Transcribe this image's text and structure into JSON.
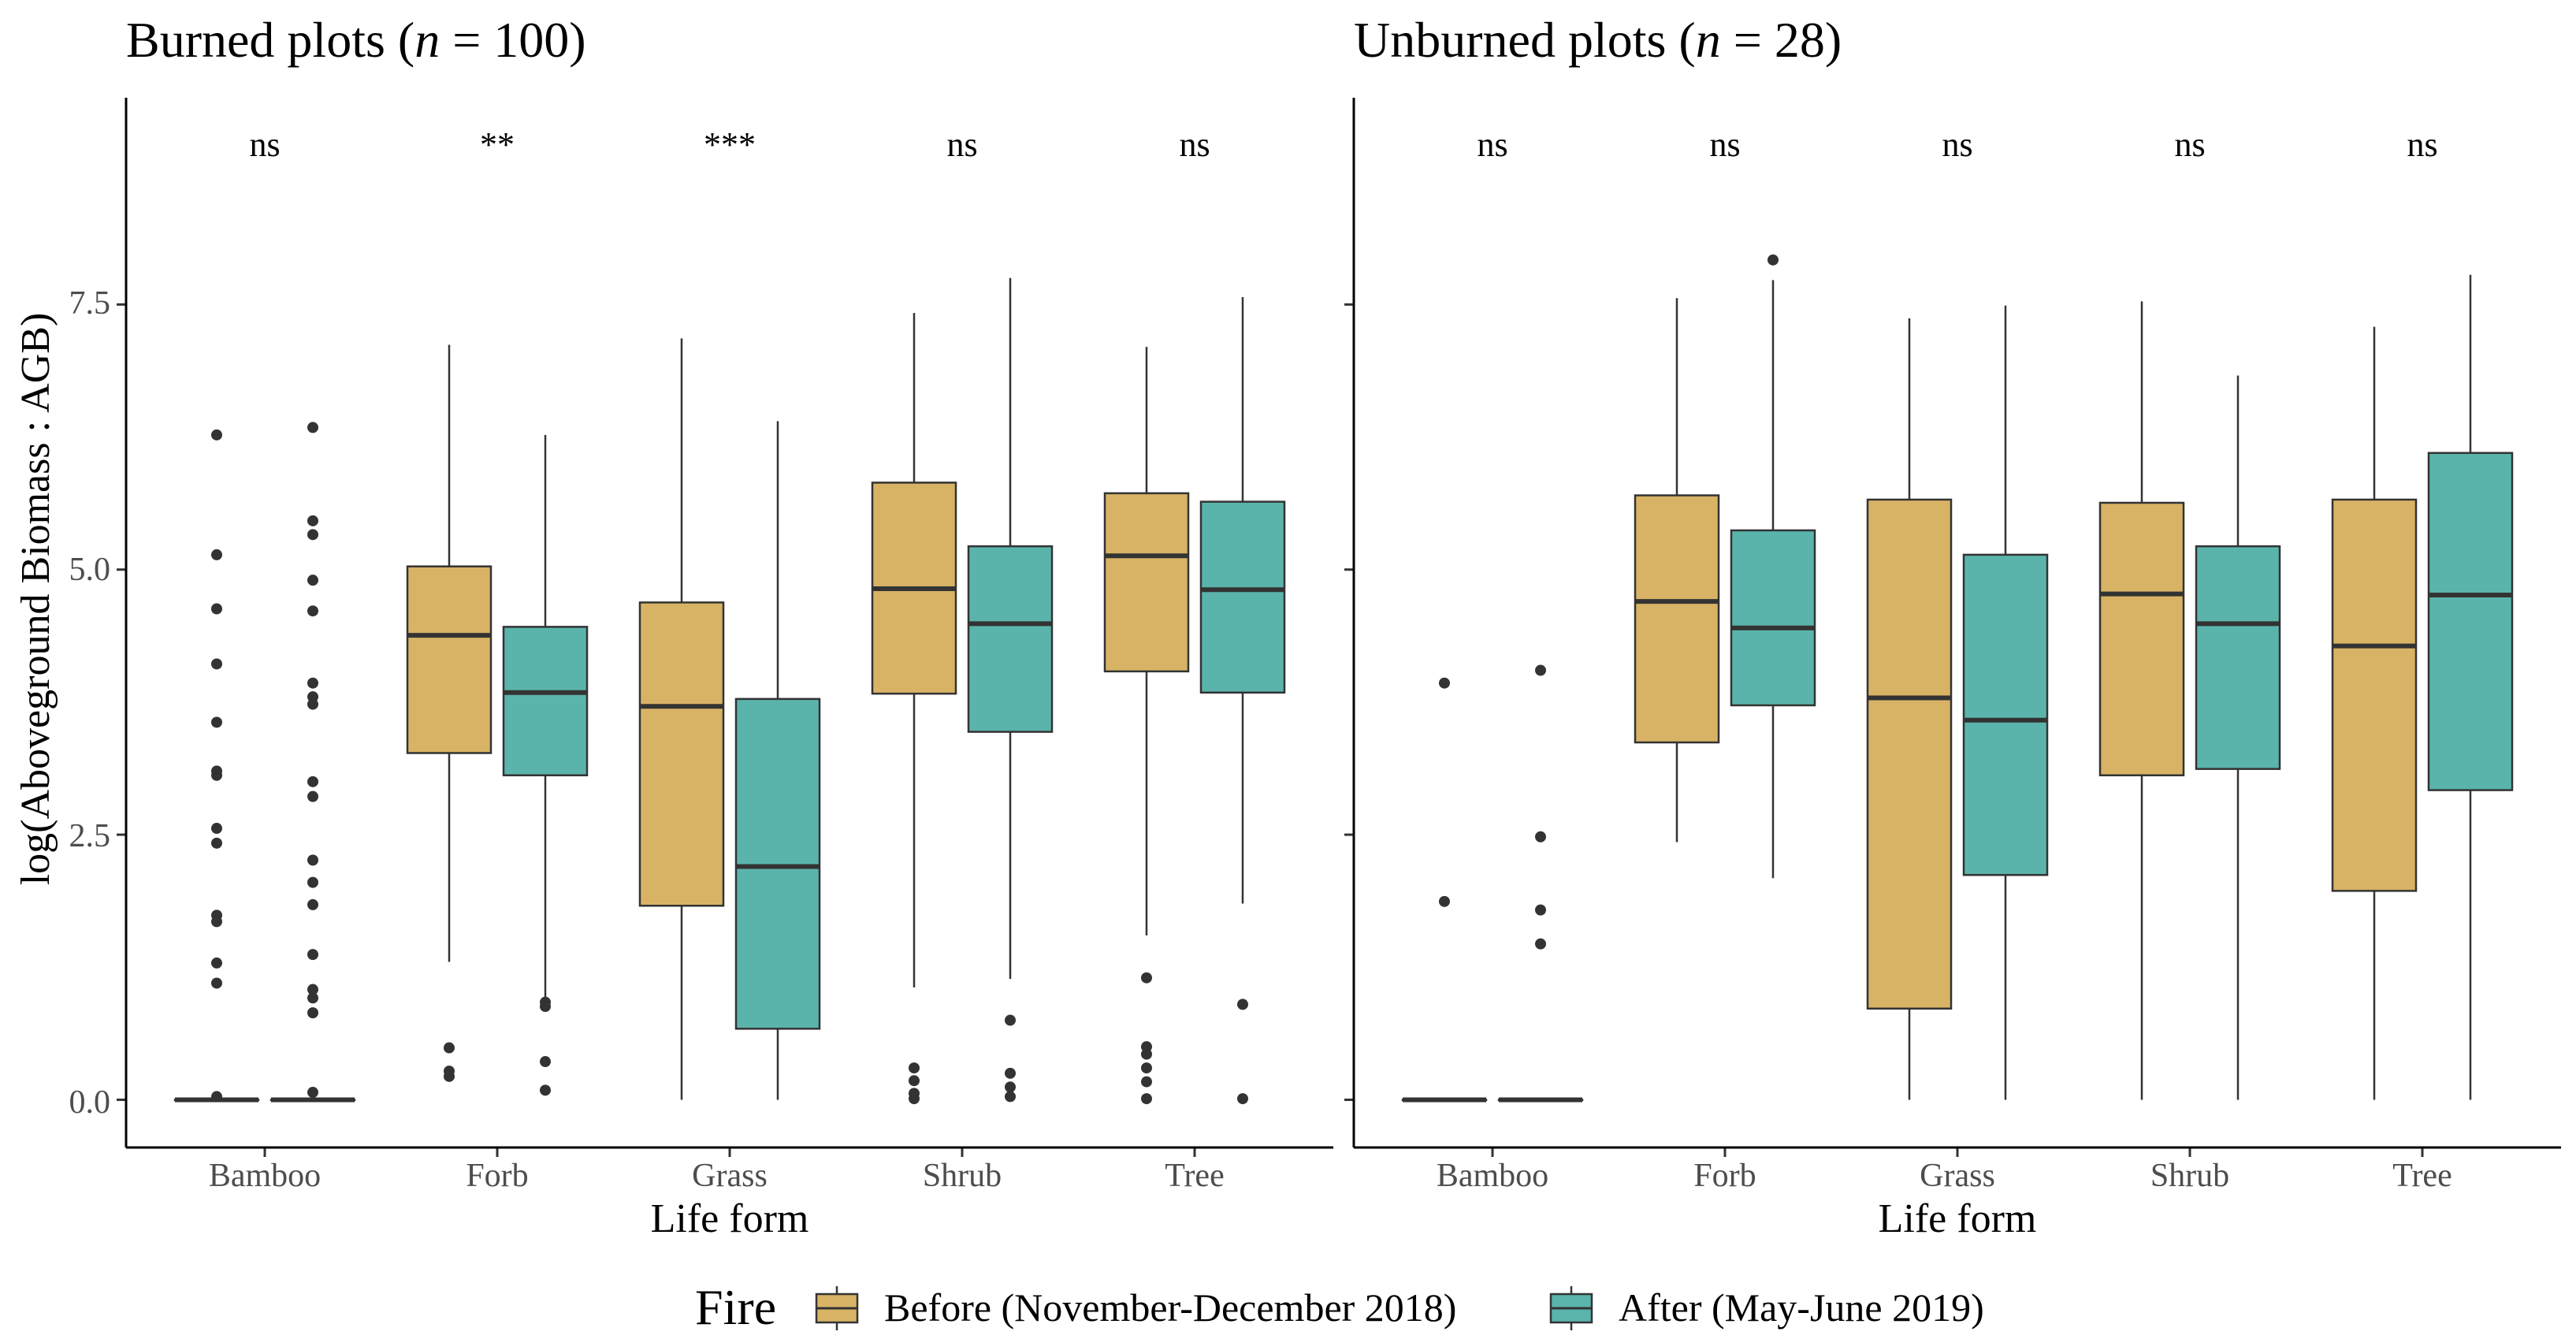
{
  "chart_data": {
    "type": "boxplot",
    "ylabel": "log(Aboveground Biomass : AGB)",
    "xlabel": "Life form",
    "ylim": [
      -0.45,
      9.45
    ],
    "yticks": [
      "0.0",
      "2.5",
      "5.0",
      "7.5"
    ],
    "ytick_values": [
      0,
      2.5,
      5,
      7.5
    ],
    "categories": [
      "Bamboo",
      "Forb",
      "Grass",
      "Shrub",
      "Tree"
    ],
    "legend": {
      "title": "Fire",
      "position": "bottom",
      "entries": [
        {
          "name": "Before (November-December 2018)",
          "color": "#D8B365"
        },
        {
          "name": "After (May-June 2019)",
          "color": "#5AB4AC"
        }
      ]
    },
    "panels": [
      {
        "title_prefix": "Burned plots (",
        "title_n": "n",
        "title_suffix": " = 100)",
        "significance": [
          "ns",
          "**",
          "***",
          "ns",
          "ns"
        ],
        "groups": [
          {
            "category": "Bamboo",
            "before": {
              "q1": 0,
              "median": 0,
              "q3": 0,
              "low": 0,
              "high": 0,
              "outliers": [
                6.27,
                5.14,
                4.63,
                4.11,
                3.56,
                3.1,
                3.06,
                2.56,
                2.42,
                1.74,
                1.68,
                1.29,
                1.1,
                0.03
              ]
            },
            "after": {
              "q1": 0,
              "median": 0,
              "q3": 0,
              "low": 0,
              "high": 0,
              "outliers": [
                6.34,
                5.46,
                5.33,
                4.9,
                4.61,
                3.93,
                3.8,
                3.73,
                3.0,
                2.86,
                2.26,
                2.05,
                1.84,
                1.37,
                1.04,
                0.96,
                0.82,
                0.07
              ]
            }
          },
          {
            "category": "Forb",
            "before": {
              "q1": 3.27,
              "median": 4.38,
              "q3": 5.03,
              "low": 1.3,
              "high": 7.12,
              "outliers": [
                0.49,
                0.27,
                0.22
              ]
            },
            "after": {
              "q1": 3.06,
              "median": 3.84,
              "q3": 4.46,
              "low": 0.96,
              "high": 6.27,
              "outliers": [
                0.92,
                0.88,
                0.36,
                0.09
              ]
            }
          },
          {
            "category": "Grass",
            "before": {
              "q1": 1.83,
              "median": 3.71,
              "q3": 4.69,
              "low": 0,
              "high": 7.18,
              "outliers": []
            },
            "after": {
              "q1": 0.67,
              "median": 2.2,
              "q3": 3.78,
              "low": 0,
              "high": 6.4,
              "outliers": []
            }
          },
          {
            "category": "Shrub",
            "before": {
              "q1": 3.83,
              "median": 4.82,
              "q3": 5.82,
              "low": 1.06,
              "high": 7.42,
              "outliers": [
                0.3,
                0.18,
                0.06,
                0.01
              ]
            },
            "after": {
              "q1": 3.47,
              "median": 4.49,
              "q3": 5.22,
              "low": 1.14,
              "high": 7.75,
              "outliers": [
                0.75,
                0.25,
                0.12,
                0.03
              ]
            }
          },
          {
            "category": "Tree",
            "before": {
              "q1": 4.04,
              "median": 5.13,
              "q3": 5.72,
              "low": 1.55,
              "high": 7.1,
              "outliers": [
                1.15,
                0.5,
                0.43,
                0.3,
                0.17,
                0.01
              ]
            },
            "after": {
              "q1": 3.84,
              "median": 4.81,
              "q3": 5.64,
              "low": 1.85,
              "high": 7.57,
              "outliers": [
                0.9,
                0.01
              ]
            }
          }
        ]
      },
      {
        "title_prefix": "Unburned plots (",
        "title_n": "n",
        "title_suffix": " = 28)",
        "significance": [
          "ns",
          "ns",
          "ns",
          "ns",
          "ns"
        ],
        "groups": [
          {
            "category": "Bamboo",
            "before": {
              "q1": 0,
              "median": 0,
              "q3": 0,
              "low": 0,
              "high": 0,
              "outliers": [
                3.93,
                1.87
              ]
            },
            "after": {
              "q1": 0,
              "median": 0,
              "q3": 0,
              "low": 0,
              "high": 0,
              "outliers": [
                4.05,
                2.48,
                1.79,
                1.47
              ]
            }
          },
          {
            "category": "Forb",
            "before": {
              "q1": 3.37,
              "median": 4.7,
              "q3": 5.7,
              "low": 2.43,
              "high": 7.56,
              "outliers": []
            },
            "after": {
              "q1": 3.72,
              "median": 4.45,
              "q3": 5.37,
              "low": 2.09,
              "high": 7.73,
              "outliers": [
                7.92
              ]
            }
          },
          {
            "category": "Grass",
            "before": {
              "q1": 0.86,
              "median": 3.79,
              "q3": 5.66,
              "low": 0,
              "high": 7.37,
              "outliers": []
            },
            "after": {
              "q1": 2.12,
              "median": 3.58,
              "q3": 5.14,
              "low": 0,
              "high": 7.49,
              "outliers": []
            }
          },
          {
            "category": "Shrub",
            "before": {
              "q1": 3.06,
              "median": 4.77,
              "q3": 5.63,
              "low": 0,
              "high": 7.53,
              "outliers": []
            },
            "after": {
              "q1": 3.12,
              "median": 4.49,
              "q3": 5.22,
              "low": 0,
              "high": 6.83,
              "outliers": []
            }
          },
          {
            "category": "Tree",
            "before": {
              "q1": 1.97,
              "median": 4.28,
              "q3": 5.66,
              "low": 0,
              "high": 7.29,
              "outliers": []
            },
            "after": {
              "q1": 2.92,
              "median": 4.76,
              "q3": 6.1,
              "low": 0,
              "high": 7.78,
              "outliers": []
            }
          }
        ]
      }
    ]
  }
}
